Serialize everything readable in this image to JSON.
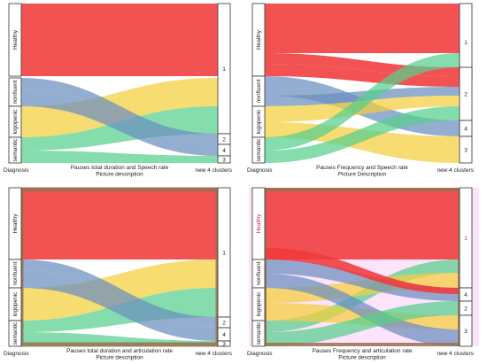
{
  "colors": {
    "healthy": "#f03a3a",
    "nonfluent": "#6b8fbf",
    "logopenic": "#f4cf3c",
    "semantic": "#56cf8c",
    "pink_panel": "#fde3fb",
    "brown_frame": "#9a7050"
  },
  "panels": [
    {
      "left_title": "Diagnosis",
      "caption_line1": "Pauses total duration and Speech rate",
      "caption_line2": "Picture description",
      "right_title": "new 4 clusters",
      "left_labels": [
        "Healthy",
        "nonfluent",
        "logopenic",
        "semantic"
      ],
      "right_labels": [
        "1",
        "2",
        "4",
        "3"
      ],
      "style": "plain"
    },
    {
      "left_title": "Diagnosis",
      "caption_line1": "Pauses Frequency and Speech rate",
      "caption_line2": "Picture Description",
      "right_title": "new 4 clusters",
      "left_labels": [
        "Healthy",
        "nonfluent",
        "logopenic",
        "semantic"
      ],
      "right_labels": [
        "1",
        "2",
        "4",
        "3"
      ],
      "style": "plain"
    },
    {
      "left_title": "Diagnosis",
      "caption_line1": "Pauses total duration and articulation rate",
      "caption_line2": "Picture description",
      "right_title": "new 4 clusters",
      "left_labels": [
        "Healthy",
        "nonfluent",
        "logopenic",
        "semantic"
      ],
      "right_labels": [
        "1",
        "2",
        "4",
        "3"
      ],
      "style": "framed"
    },
    {
      "left_title": "Diagnosis",
      "caption_line1": "Pauses Frequency and articulation rate",
      "caption_line2": "Picture description",
      "right_title": "new 4 clusters",
      "left_labels": [
        "Healthy",
        "nonfluent",
        "logopenic",
        "semantic"
      ],
      "right_labels": [
        "1",
        "4",
        "2",
        "3"
      ],
      "style": "pink"
    }
  ]
}
